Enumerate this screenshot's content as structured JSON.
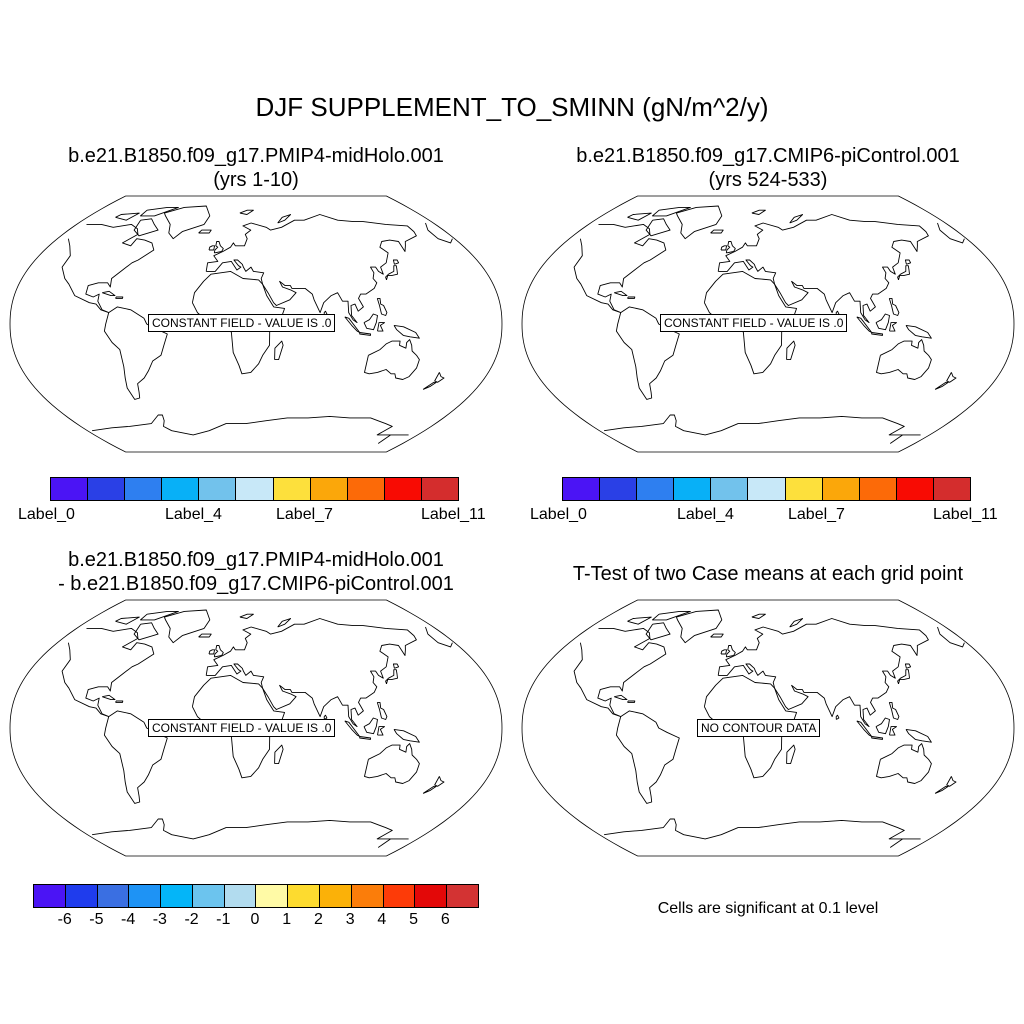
{
  "main_title": "DJF SUPPLEMENT_TO_SMINN (gN/m^2/y)",
  "panels": [
    {
      "title1": "b.e21.B1850.f09_g17.PMIP4-midHolo.001",
      "title2": "(yrs 1-10)",
      "message": "CONSTANT FIELD - VALUE IS .0"
    },
    {
      "title1": "b.e21.B1850.f09_g17.CMIP6-piControl.001",
      "title2": "(yrs 524-533)",
      "message": "CONSTANT FIELD - VALUE IS .0"
    },
    {
      "title1": "b.e21.B1850.f09_g17.PMIP4-midHolo.001",
      "title2": "- b.e21.B1850.f09_g17.CMIP6-piControl.001",
      "message": "CONSTANT FIELD - VALUE IS .0"
    },
    {
      "title1": "T-Test of two Case means at each grid point",
      "title2": "",
      "message": "NO CONTOUR DATA"
    }
  ],
  "colorbar_case": {
    "colors": [
      "#4b14f5",
      "#2a40e6",
      "#2e7ff0",
      "#08b0f7",
      "#72c2ec",
      "#c8e8f8",
      "#fde03c",
      "#fba70a",
      "#fc6a08",
      "#f80b03",
      "#d42d2d"
    ],
    "labels": [
      "Label_0",
      "Label_4",
      "Label_7",
      "Label_11"
    ]
  },
  "colorbar_diff": {
    "colors": [
      "#4b14f5",
      "#1f3ced",
      "#3a6fe2",
      "#1e93f5",
      "#04b5f8",
      "#6cc4ee",
      "#b2dcef",
      "#fffaa6",
      "#fddb2f",
      "#fbb108",
      "#fb7d0a",
      "#fd3b08",
      "#e30808",
      "#d33333"
    ],
    "labels": [
      "-6",
      "-5",
      "-4",
      "-3",
      "-2",
      "-1",
      "0",
      "1",
      "2",
      "3",
      "4",
      "5",
      "6"
    ]
  },
  "significance_note": "Cells are significant at 0.1 level"
}
